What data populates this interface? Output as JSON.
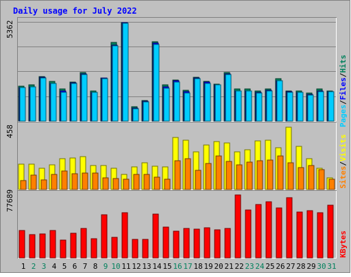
{
  "chart_data": {
    "type": "bar",
    "title": "Daily usage for July 2022",
    "categories": [
      "1",
      "2",
      "3",
      "4",
      "5",
      "6",
      "7",
      "8",
      "9",
      "10",
      "11",
      "12",
      "13",
      "14",
      "15",
      "16",
      "17",
      "18",
      "19",
      "20",
      "21",
      "22",
      "23",
      "24",
      "25",
      "26",
      "27",
      "28",
      "29",
      "30",
      "31"
    ],
    "weekend_days": [
      "2",
      "3",
      "9",
      "10",
      "16",
      "17",
      "23",
      "24",
      "30",
      "31"
    ],
    "panels": [
      {
        "id": "hits-files-pages",
        "ymax_label": "5362",
        "ylim": [
          0,
          5362
        ],
        "right_labels": [
          "Pages",
          "Files",
          "Hits"
        ],
        "series": [
          {
            "name": "Hits",
            "color": "#00805c",
            "values": [
              1890,
              1950,
              2400,
              2140,
              1720,
              2090,
              2620,
              1620,
              2340,
              4250,
              5340,
              760,
              1100,
              4280,
              1950,
              2230,
              1650,
              2380,
              2140,
              2000,
              2630,
              1730,
              1730,
              1620,
              1730,
              2290,
              1640,
              1640,
              1520,
              1730,
              1640
            ]
          },
          {
            "name": "Files",
            "color": "#0000ff",
            "values": [
              1830,
              1860,
              2380,
              2050,
              1620,
              2070,
              2560,
              1540,
              2330,
              4120,
              5320,
              710,
              1060,
              4200,
              1840,
              2170,
              1590,
              2330,
              2090,
              1970,
              2540,
              1620,
              1620,
              1540,
              1650,
              2190,
              1580,
              1560,
              1440,
              1630,
              1600
            ]
          },
          {
            "name": "Pages",
            "color": "#00ccff",
            "values": [
              1830,
              1860,
              2340,
              2020,
              1560,
              2040,
              2510,
              1540,
              2310,
              4070,
              5300,
              670,
              1040,
              4140,
              1760,
              2120,
              1530,
              2300,
              2040,
              1960,
              2520,
              1620,
              1620,
              1500,
              1620,
              2190,
              1570,
              1540,
              1400,
              1600,
              1580
            ]
          }
        ]
      },
      {
        "id": "visits-sites",
        "ymax_label": "458",
        "ylim": [
          0,
          458
        ],
        "right_labels": [
          "Sites",
          "Visits"
        ],
        "series": [
          {
            "name": "Visits",
            "color": "#ffff00",
            "values": [
              185,
              185,
              155,
              180,
              225,
              230,
              240,
              175,
              175,
              155,
              110,
              165,
              195,
              170,
              165,
              380,
              360,
              275,
              325,
              350,
              340,
              275,
              290,
              355,
              360,
              305,
              455,
              315,
              225,
              155,
              85
            ]
          },
          {
            "name": "Sites",
            "color": "#ff8000",
            "values": [
              65,
              105,
              70,
              110,
              135,
              115,
              120,
              120,
              85,
              80,
              75,
              110,
              110,
              90,
              75,
              210,
              225,
              140,
              190,
              245,
              205,
              180,
              200,
              210,
              215,
              245,
              195,
              160,
              175,
              145,
              75
            ]
          }
        ]
      },
      {
        "id": "kbytes",
        "ymax_label": "77689",
        "ylim": [
          0,
          77689
        ],
        "right_labels": [
          "KBytes"
        ],
        "series": [
          {
            "name": "KBytes",
            "color": "#ff0000",
            "values": [
              33500,
              29000,
              29500,
              34000,
              22000,
              30500,
              36500,
              23500,
              53000,
              25000,
              56000,
              23000,
              22500,
              54000,
              38000,
              33000,
              36500,
              35500,
              37000,
              35000,
              36000,
              77500,
              59000,
              65500,
              69500,
              62000,
              74000,
              57000,
              58500,
              55500,
              65000
            ]
          }
        ]
      }
    ]
  },
  "colors": {
    "background": "#c0c0c0",
    "title_text": "#0000ff",
    "weekday_label": "#000000",
    "weekend_label": "#00805c",
    "separator": "#ffffff",
    "grid": "#808080"
  }
}
